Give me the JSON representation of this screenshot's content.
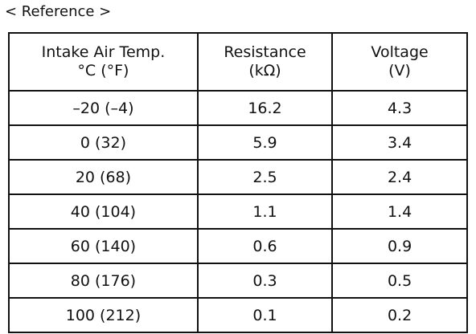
{
  "caption": "< Reference >",
  "table": {
    "header": [
      [
        "Intake Air Temp.",
        "°C (°F)"
      ],
      [
        "Resistance",
        "(kΩ)"
      ],
      [
        "Voltage",
        "(V)"
      ]
    ],
    "rows": [
      [
        "–20 (–4)",
        "16.2",
        "4.3"
      ],
      [
        "0 (32)",
        "5.9",
        "3.4"
      ],
      [
        "20 (68)",
        "2.5",
        "2.4"
      ],
      [
        "40 (104)",
        "1.1",
        "1.4"
      ],
      [
        "60 (140)",
        "0.6",
        "0.9"
      ],
      [
        "80 (176)",
        "0.3",
        "0.5"
      ],
      [
        "100 (212)",
        "0.1",
        "0.2"
      ]
    ]
  }
}
